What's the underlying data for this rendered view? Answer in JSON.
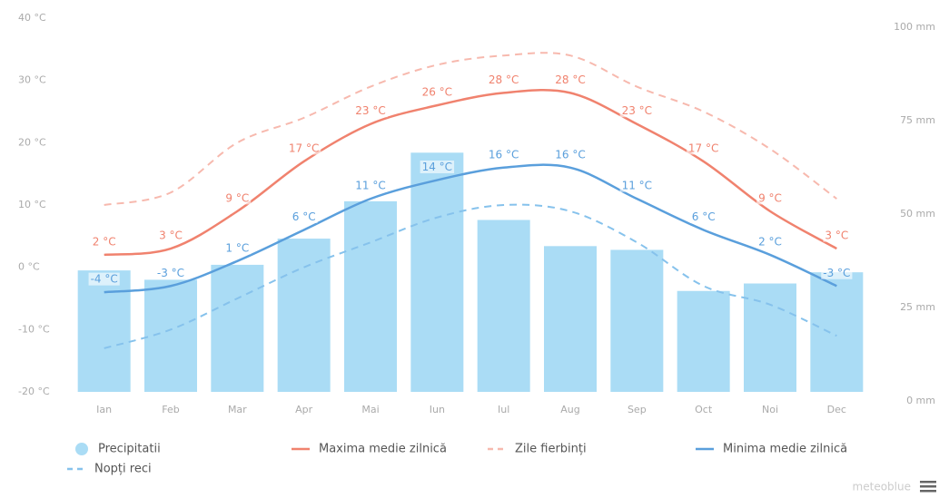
{
  "chart_data": {
    "type": "bar",
    "categories": [
      "Ian",
      "Feb",
      "Mar",
      "Apr",
      "Mai",
      "Iun",
      "Iul",
      "Aug",
      "Sep",
      "Oct",
      "Noi",
      "Dec"
    ],
    "ylim": [
      -20,
      40
    ],
    "yticks": [
      {
        "value": -20,
        "label": "-20 °C"
      },
      {
        "value": -10,
        "label": "-10 °C"
      },
      {
        "value": 0,
        "label": "0 °C"
      },
      {
        "value": 10,
        "label": "10 °C"
      },
      {
        "value": 20,
        "label": "20 °C"
      },
      {
        "value": 30,
        "label": "30 °C"
      },
      {
        "value": 40,
        "label": "40 °C"
      }
    ],
    "y2lim": [
      0,
      100
    ],
    "y2ticks": [
      {
        "value": 0,
        "label": "0 mm"
      },
      {
        "value": 25,
        "label": "25 mm"
      },
      {
        "value": 50,
        "label": "50 mm"
      },
      {
        "value": 75,
        "label": "75 mm"
      },
      {
        "value": 100,
        "label": "100 mm"
      }
    ],
    "series": [
      {
        "name": "Precipitatii",
        "type": "bar",
        "axis": "y2",
        "color": "#aadcf5",
        "values": [
          32.5,
          30,
          34,
          41,
          51,
          64,
          46,
          39,
          38,
          27,
          29,
          32
        ]
      },
      {
        "name": "Maxima medie zilnică",
        "type": "line",
        "color": "#f0826e",
        "values": [
          2,
          3,
          9,
          17,
          23,
          26,
          28,
          28,
          23,
          17,
          9,
          3
        ],
        "value_labels": [
          "2 °C",
          "3 °C",
          "9 °C",
          "17 °C",
          "23 °C",
          "26 °C",
          "28 °C",
          "28 °C",
          "23 °C",
          "17 °C",
          "9 °C",
          "3 °C"
        ]
      },
      {
        "name": "Zile fierbinți",
        "type": "line",
        "dashed": true,
        "color": "#f7b9ae",
        "values": [
          10,
          12,
          20,
          24,
          29,
          32.5,
          34,
          34,
          29,
          25,
          19,
          11
        ]
      },
      {
        "name": "Minima medie zilnică",
        "type": "line",
        "color": "#5a9fdc",
        "values": [
          -4,
          -3,
          1,
          6,
          11,
          14,
          16,
          16,
          11,
          6,
          2,
          -3
        ],
        "value_labels": [
          "-4 °C",
          "-3 °C",
          "1 °C",
          "6 °C",
          "11 °C",
          "14 °C",
          "16 °C",
          "16 °C",
          "11 °C",
          "6 °C",
          "2 °C",
          "-3 °C"
        ]
      },
      {
        "name": "Nopți reci",
        "type": "line",
        "dashed": true,
        "color": "#86c2ec",
        "values": [
          -13,
          -10,
          -5,
          0,
          4,
          8,
          10,
          9,
          4,
          -3,
          -6,
          -11
        ]
      }
    ],
    "watermark": "meteoblue"
  }
}
